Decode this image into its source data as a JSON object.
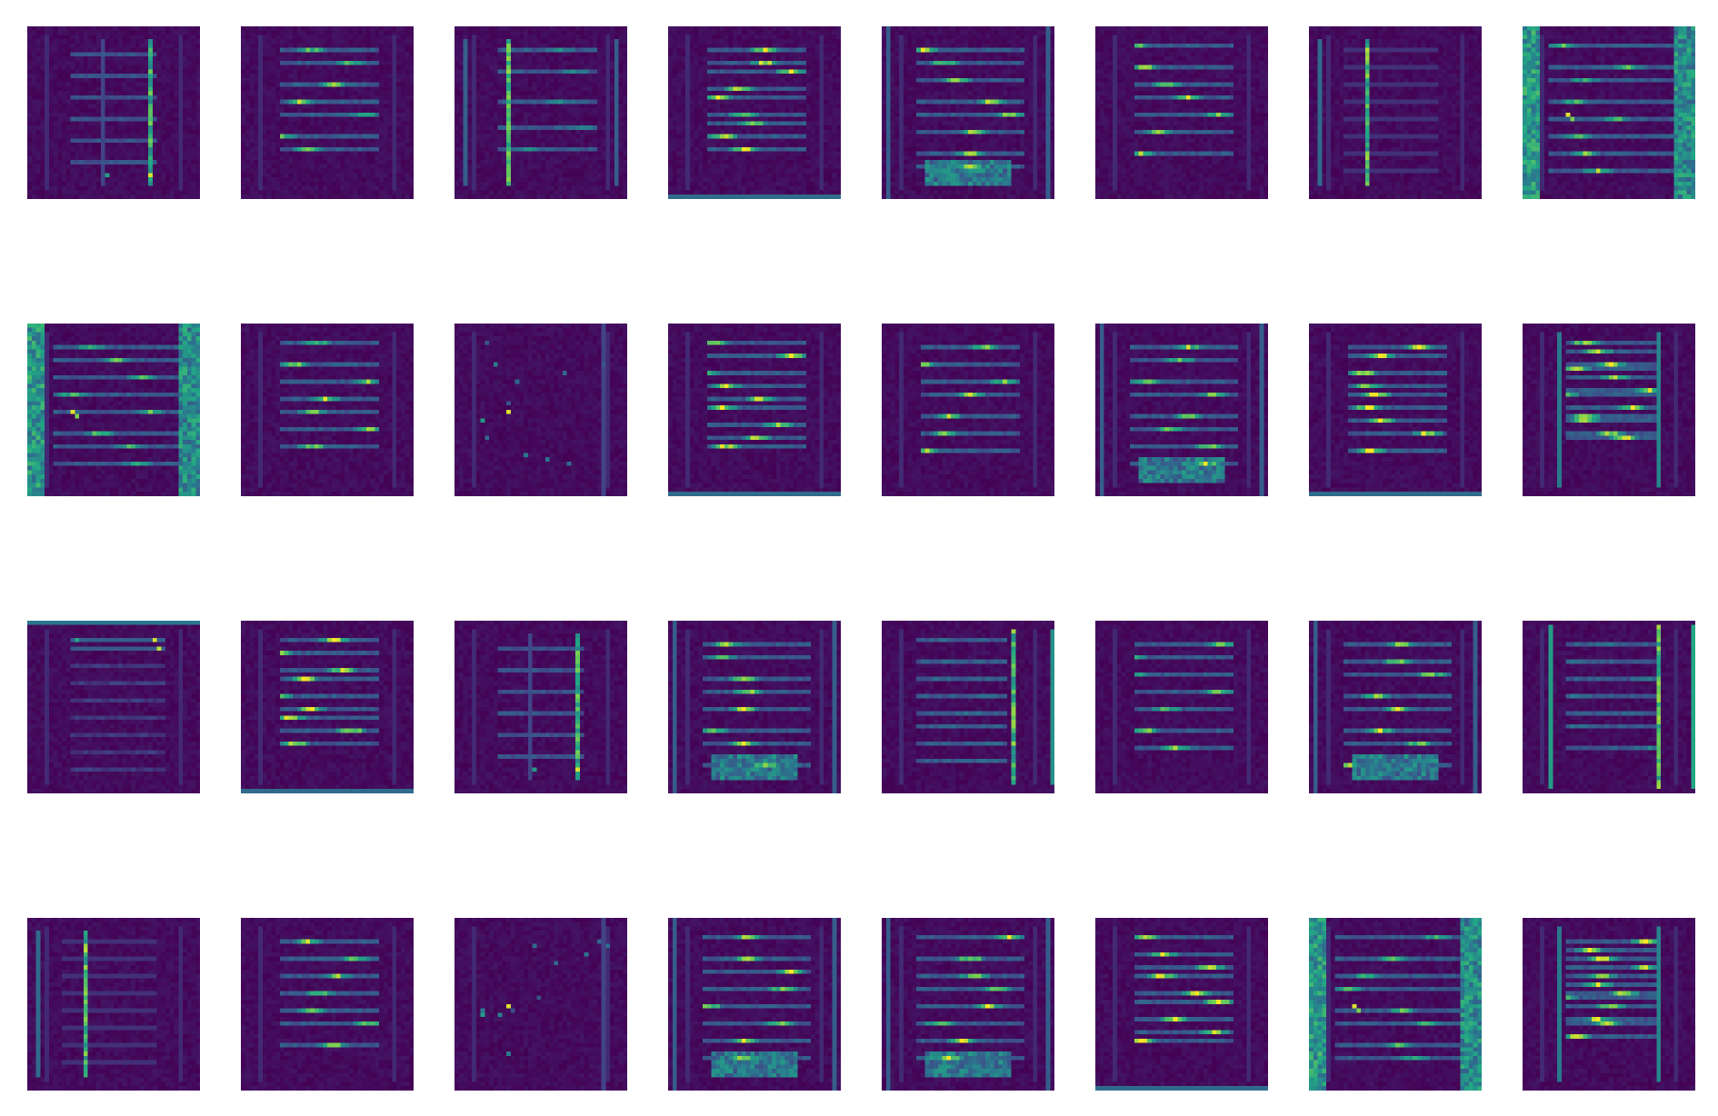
{
  "figure": {
    "grid": {
      "rows": 4,
      "cols": 8
    },
    "colormap": "viridis",
    "colormap_stops": [
      "#440154",
      "#414487",
      "#2a788e",
      "#22a884",
      "#7ad151",
      "#fde725"
    ],
    "background": "#ffffff",
    "axes_visible": false
  },
  "tiles": [
    {
      "pattern": "vstripes"
    },
    {
      "pattern": "hbars-sparse"
    },
    {
      "pattern": "vstripes-left"
    },
    {
      "pattern": "hbars-bright"
    },
    {
      "pattern": "hbars-mixed"
    },
    {
      "pattern": "hbars-sparse"
    },
    {
      "pattern": "vline-single"
    },
    {
      "pattern": "border-bright"
    },
    {
      "pattern": "border-bright"
    },
    {
      "pattern": "hbars-sparse"
    },
    {
      "pattern": "dark-dots"
    },
    {
      "pattern": "hbars-bright"
    },
    {
      "pattern": "hbars-sparse"
    },
    {
      "pattern": "hbars-mixed"
    },
    {
      "pattern": "hbars-bright"
    },
    {
      "pattern": "hbars-ladder"
    },
    {
      "pattern": "top-right-spots"
    },
    {
      "pattern": "hbars-bright"
    },
    {
      "pattern": "vstripes"
    },
    {
      "pattern": "hbars-mixed"
    },
    {
      "pattern": "vline-right"
    },
    {
      "pattern": "hbars-sparse"
    },
    {
      "pattern": "hbars-mixed"
    },
    {
      "pattern": "vstripes-edges"
    },
    {
      "pattern": "vline-single"
    },
    {
      "pattern": "hbars-sparse"
    },
    {
      "pattern": "dark-dots"
    },
    {
      "pattern": "hbars-mixed"
    },
    {
      "pattern": "hbars-mixed"
    },
    {
      "pattern": "hbars-bright"
    },
    {
      "pattern": "border-bright"
    },
    {
      "pattern": "hbars-ladder"
    }
  ]
}
